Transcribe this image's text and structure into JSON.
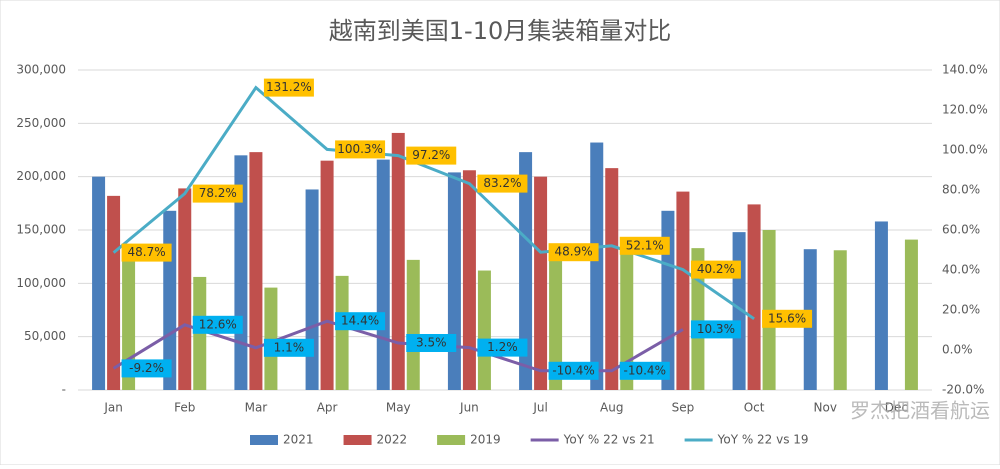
{
  "chart_data": {
    "type": "bar_line",
    "title": "越南到美国1-10月集装箱量对比",
    "categories": [
      "Jan",
      "Feb",
      "Mar",
      "Apr",
      "May",
      "Jun",
      "Jul",
      "Aug",
      "Sep",
      "Oct",
      "Nov",
      "Dec"
    ],
    "series": [
      {
        "name": "2021",
        "type": "bar",
        "color": "#4a7ebb",
        "values": [
          200000,
          168000,
          220000,
          188000,
          216000,
          204000,
          223000,
          232000,
          168000,
          148000,
          132000,
          158000
        ]
      },
      {
        "name": "2022",
        "type": "bar",
        "color": "#c0504d",
        "values": [
          182000,
          189000,
          223000,
          215000,
          241000,
          206000,
          200000,
          208000,
          186000,
          174000,
          null,
          null
        ]
      },
      {
        "name": "2019",
        "type": "bar",
        "color": "#9bbb59",
        "values": [
          122000,
          106000,
          96000,
          107000,
          122000,
          112000,
          134000,
          137000,
          133000,
          150000,
          131000,
          141000
        ]
      },
      {
        "name": "YoY % 22 vs 21",
        "type": "line",
        "axis": "y2",
        "color": "#7b5ea7",
        "label_color": "#00b0f0",
        "values": [
          -9.2,
          12.6,
          1.1,
          14.4,
          3.5,
          1.2,
          -10.4,
          -10.4,
          10.3,
          null,
          null,
          null
        ],
        "value_labels": [
          "-9.2%",
          "12.6%",
          "1.1%",
          "14.4%",
          "3.5%",
          "1.2%",
          "-10.4%",
          "-10.4%",
          "10.3%",
          null,
          null,
          null
        ]
      },
      {
        "name": "YoY % 22 vs 19",
        "type": "line",
        "axis": "y2",
        "color": "#4bacc6",
        "label_color": "#ffc000",
        "values": [
          48.7,
          78.2,
          131.2,
          100.3,
          97.2,
          83.2,
          48.9,
          52.1,
          40.2,
          15.6,
          null,
          null
        ],
        "value_labels": [
          "48.7%",
          "78.2%",
          "131.2%",
          "100.3%",
          "97.2%",
          "83.2%",
          "48.9%",
          "52.1%",
          "40.2%",
          "15.6%",
          null,
          null
        ]
      }
    ],
    "ylim": [
      0,
      300000
    ],
    "yticks": [
      {
        "value": 0,
        "label": "-"
      },
      {
        "value": 50000,
        "label": "50,000"
      },
      {
        "value": 100000,
        "label": "100,000"
      },
      {
        "value": 150000,
        "label": "150,000"
      },
      {
        "value": 200000,
        "label": "200,000"
      },
      {
        "value": 250000,
        "label": "250,000"
      },
      {
        "value": 300000,
        "label": "300,000"
      }
    ],
    "y2lim": [
      -20,
      140
    ],
    "y2ticks": [
      {
        "value": -20,
        "label": "-20.0%"
      },
      {
        "value": 0,
        "label": "0.0%"
      },
      {
        "value": 20,
        "label": "20.0%"
      },
      {
        "value": 40,
        "label": "40.0%"
      },
      {
        "value": 60,
        "label": "60.0%"
      },
      {
        "value": 80,
        "label": "80.0%"
      },
      {
        "value": 100,
        "label": "100.0%"
      },
      {
        "value": 120,
        "label": "120.0%"
      },
      {
        "value": 140,
        "label": "140.0%"
      }
    ],
    "grid": true,
    "legend": "bottom",
    "watermark": "罗杰把酒看航运"
  }
}
